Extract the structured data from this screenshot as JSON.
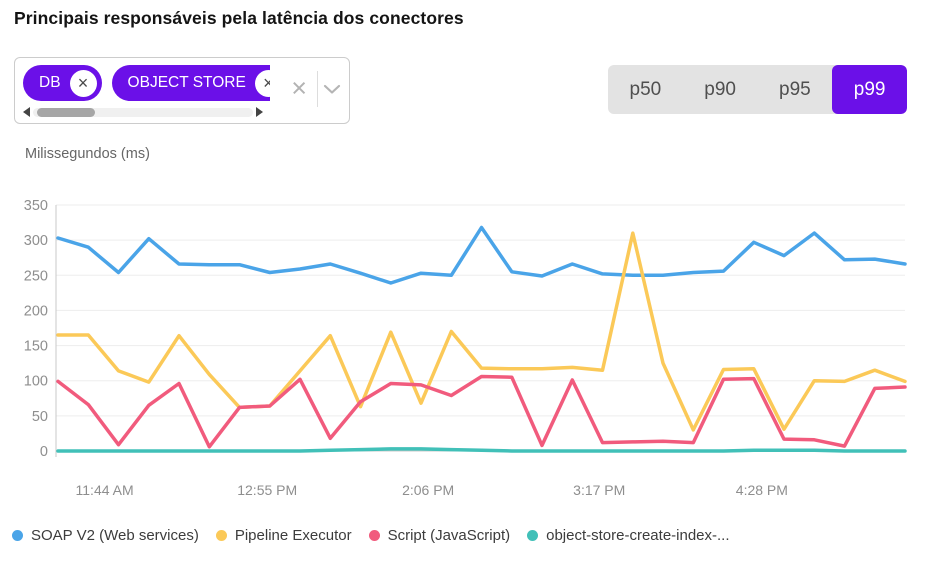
{
  "header": {
    "title": "Principais responsáveis pela latência dos conectores"
  },
  "filter": {
    "chips": [
      {
        "label": "DB",
        "remove_icon": "×"
      },
      {
        "label": "OBJECT STORE",
        "remove_icon": "×"
      }
    ],
    "clear_icon": "×",
    "chevron_icon": "chevron-down",
    "scrollbar": {
      "left_arrow": "triangle-left-icon",
      "right_arrow": "triangle-right-icon"
    }
  },
  "percentiles": {
    "options": [
      "p50",
      "p90",
      "p95",
      "p99"
    ],
    "selected": "p99"
  },
  "colors": {
    "accent_purple": "#6b10e8",
    "toggle_bg": "#e3e3e3",
    "grid": "#ededed",
    "axis": "#c9c9c9",
    "tick_text": "#8e8e8e",
    "blue": "#4aa4e8",
    "yellow": "#fbc958",
    "pink": "#f15b7d",
    "teal": "#41c0b8"
  },
  "chart_data": {
    "type": "line",
    "title": "",
    "ylabel": "Milissegundos (ms)",
    "xlabel": "",
    "ylim": [
      0,
      350
    ],
    "ytick_interval": 50,
    "grid": true,
    "legend_position": "bottom",
    "x_axis": {
      "labels": [
        "11:44 AM",
        "12:55 PM",
        "2:06 PM",
        "3:17 PM",
        "4:28 PM"
      ],
      "positions": [
        0.055,
        0.247,
        0.437,
        0.639,
        0.831
      ]
    },
    "series": [
      {
        "name": "SOAP V2 (Web services)",
        "color": "#4aa4e8",
        "values": [
          303,
          290,
          254,
          302,
          266,
          265,
          265,
          254,
          259,
          266,
          253,
          239,
          253,
          250,
          318,
          255,
          249,
          266,
          252,
          250,
          250,
          254,
          256,
          297,
          278,
          310,
          272,
          273,
          266
        ]
      },
      {
        "name": "Pipeline Executor",
        "color": "#fbc958",
        "values": [
          165,
          165,
          114,
          98,
          164,
          109,
          62,
          64,
          114,
          164,
          63,
          169,
          68,
          170,
          118,
          117,
          117,
          119,
          115,
          310,
          125,
          30,
          116,
          117,
          31,
          100,
          99,
          115,
          99
        ]
      },
      {
        "name": "Script (JavaScript)",
        "color": "#f15b7d",
        "values": [
          99,
          66,
          9,
          65,
          96,
          6,
          62,
          64,
          102,
          18,
          70,
          96,
          94,
          79,
          106,
          105,
          8,
          101,
          12,
          13,
          14,
          12,
          102,
          103,
          17,
          16,
          7,
          89,
          91
        ]
      },
      {
        "name": "object-store-create-index-...",
        "color": "#41c0b8",
        "values": [
          0,
          0,
          0,
          0,
          0,
          0,
          0,
          0,
          0,
          1,
          2,
          3,
          3,
          2,
          1,
          0,
          0,
          0,
          0,
          0,
          0,
          0,
          0,
          1,
          1,
          1,
          0,
          0,
          0
        ]
      }
    ]
  }
}
